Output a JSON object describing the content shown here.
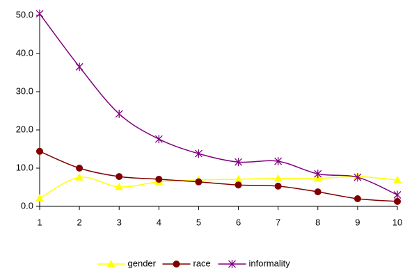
{
  "chart_data": {
    "type": "line",
    "x": [
      1,
      2,
      3,
      4,
      5,
      6,
      7,
      8,
      9,
      10
    ],
    "xlim": [
      1,
      10
    ],
    "xticks": [
      1,
      2,
      3,
      4,
      5,
      6,
      7,
      8,
      9,
      10
    ],
    "ylim": [
      0,
      50
    ],
    "yticks": [
      {
        "value": 0,
        "label": "0.0"
      },
      {
        "value": 10,
        "label": "10.0"
      },
      {
        "value": 20,
        "label": "20.0"
      },
      {
        "value": 30,
        "label": "30.0"
      },
      {
        "value": 40,
        "label": "40.0"
      },
      {
        "value": 50,
        "label": "50.0"
      }
    ],
    "grid": false,
    "smooth": true,
    "legend": "bottom",
    "series": [
      {
        "name": "gender",
        "color": "#ffff00",
        "marker": "triangle",
        "values": [
          2.1,
          7.6,
          5.1,
          6.4,
          6.9,
          7.1,
          7.3,
          7.3,
          7.8,
          6.9
        ]
      },
      {
        "name": "race",
        "color": "#800000",
        "marker": "circle",
        "values": [
          14.4,
          10.0,
          7.8,
          7.1,
          6.4,
          5.6,
          5.3,
          3.8,
          2.0,
          1.3
        ]
      },
      {
        "name": "informality",
        "color": "#800080",
        "marker": "star",
        "values": [
          50.4,
          36.5,
          24.2,
          17.6,
          13.8,
          11.6,
          11.8,
          8.5,
          7.6,
          3.0
        ]
      }
    ]
  }
}
